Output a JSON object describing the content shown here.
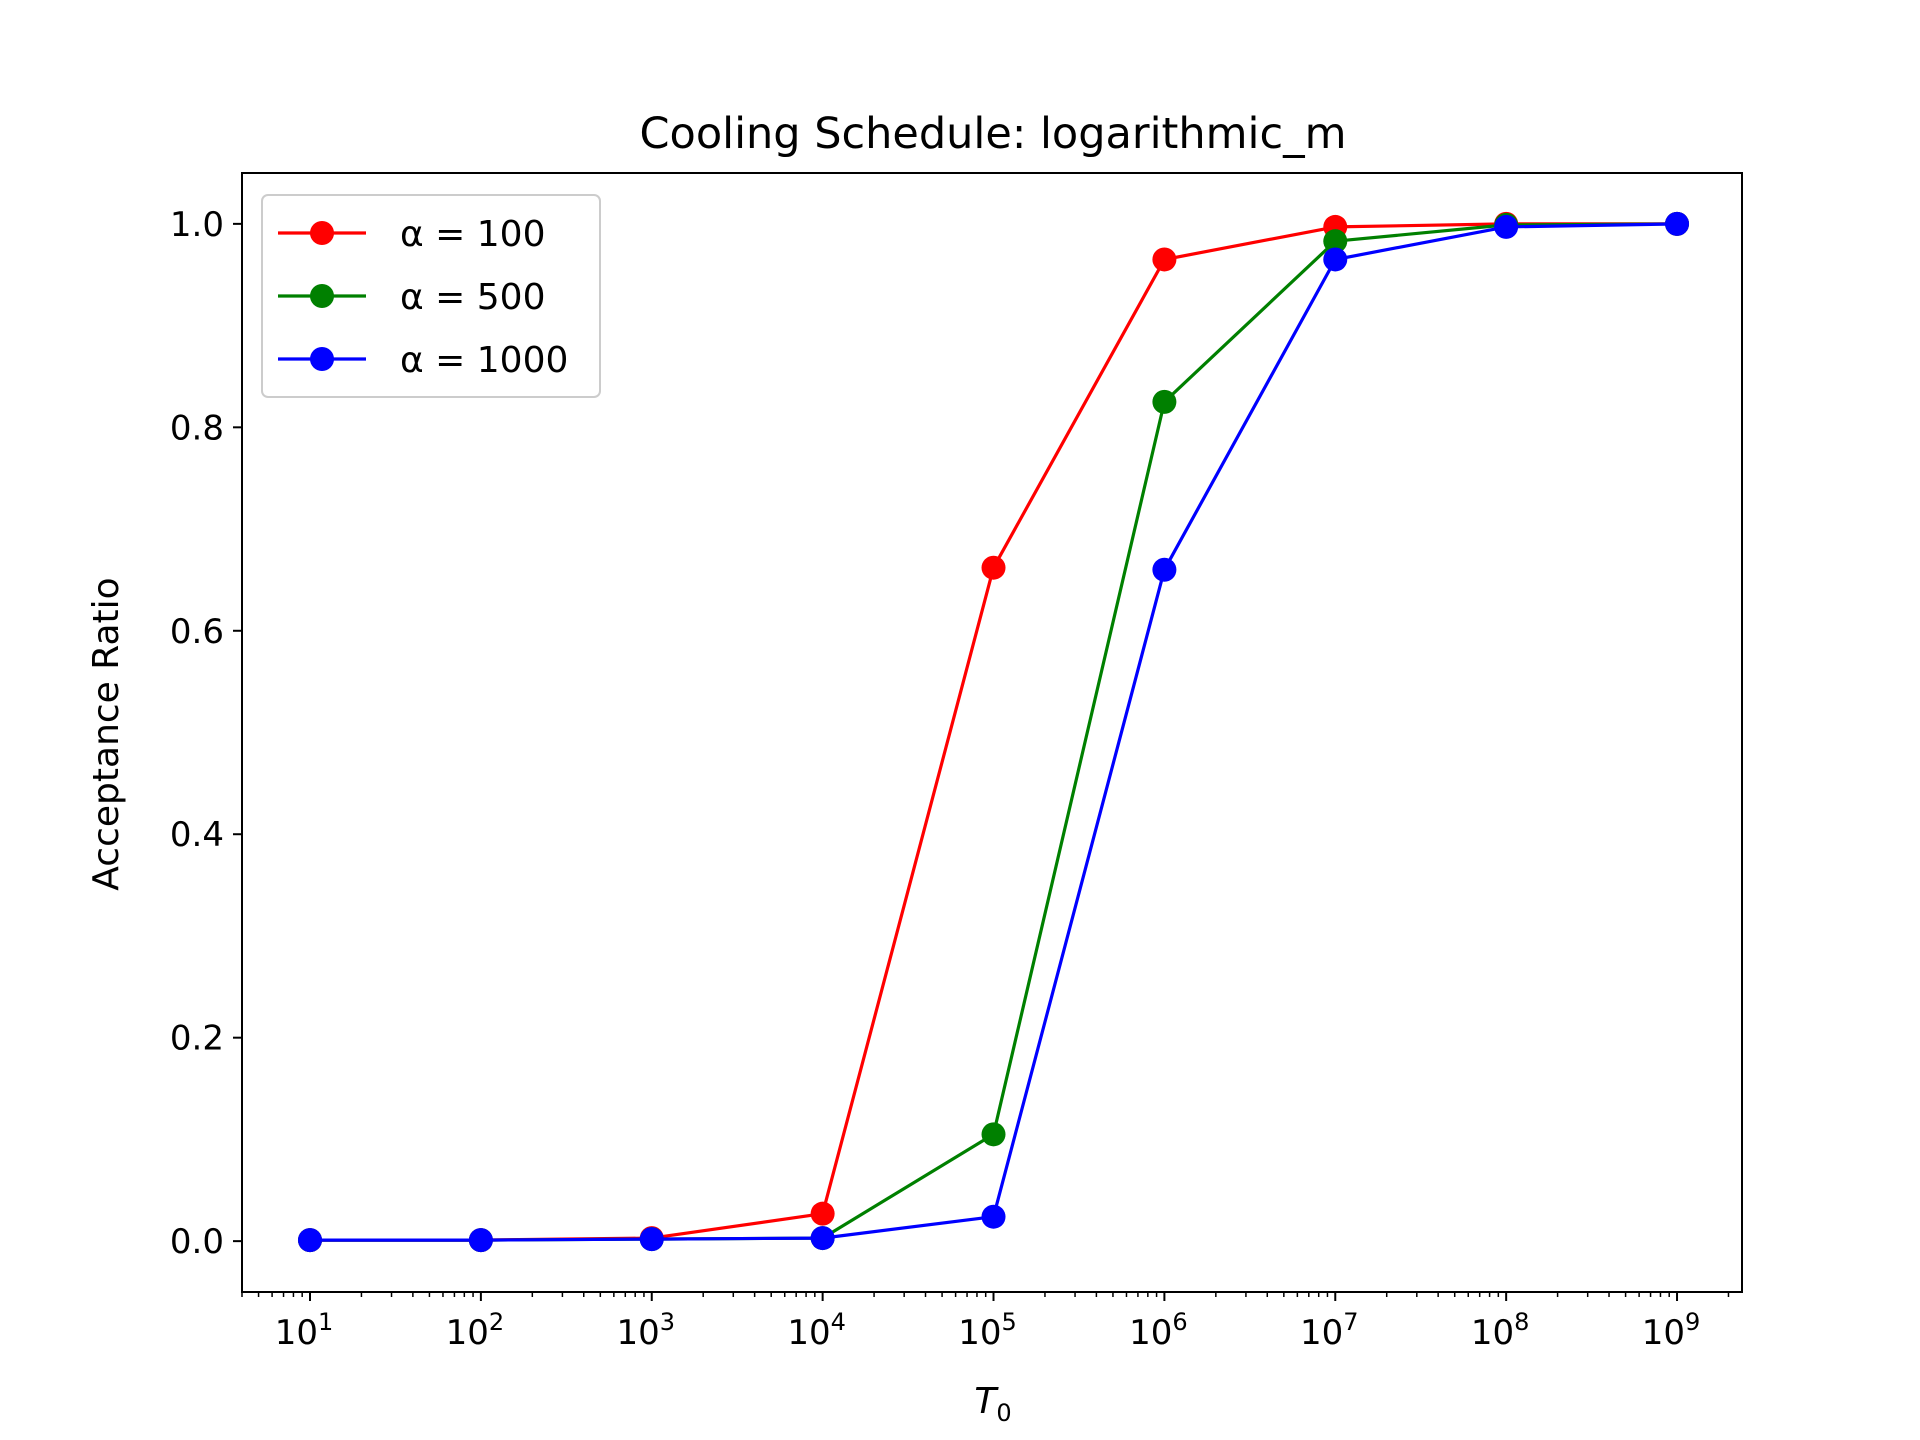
{
  "chart_data": {
    "type": "line",
    "title": "Cooling Schedule: logarithmic_m",
    "xlabel": "T",
    "xlabel_sub": "0",
    "ylabel": "Acceptance Ratio",
    "xscale": "log",
    "xlim": [
      4,
      2400000000.0
    ],
    "ylim": [
      -0.05,
      1.05
    ],
    "x": [
      10,
      100,
      1000,
      10000,
      100000,
      1000000,
      10000000,
      100000000,
      1000000000
    ],
    "x_ticks": [
      {
        "base": "10",
        "exp": "1"
      },
      {
        "base": "10",
        "exp": "2"
      },
      {
        "base": "10",
        "exp": "3"
      },
      {
        "base": "10",
        "exp": "4"
      },
      {
        "base": "10",
        "exp": "5"
      },
      {
        "base": "10",
        "exp": "6"
      },
      {
        "base": "10",
        "exp": "7"
      },
      {
        "base": "10",
        "exp": "8"
      },
      {
        "base": "10",
        "exp": "9"
      }
    ],
    "y_ticks": [
      "0.0",
      "0.2",
      "0.4",
      "0.6",
      "0.8",
      "1.0"
    ],
    "grid": false,
    "legend_position": "top-left",
    "series": [
      {
        "name": "α = 100",
        "color": "#ff0000",
        "values": [
          0.001,
          0.001,
          0.003,
          0.027,
          0.662,
          0.965,
          0.997,
          1.0,
          1.0
        ]
      },
      {
        "name": "α = 500",
        "color": "#008000",
        "values": [
          0.001,
          0.001,
          0.002,
          0.003,
          0.105,
          0.825,
          0.983,
          0.999,
          1.0
        ]
      },
      {
        "name": "α = 1000",
        "color": "#0000ff",
        "values": [
          0.001,
          0.001,
          0.002,
          0.003,
          0.024,
          0.66,
          0.965,
          0.997,
          1.0
        ]
      }
    ]
  }
}
